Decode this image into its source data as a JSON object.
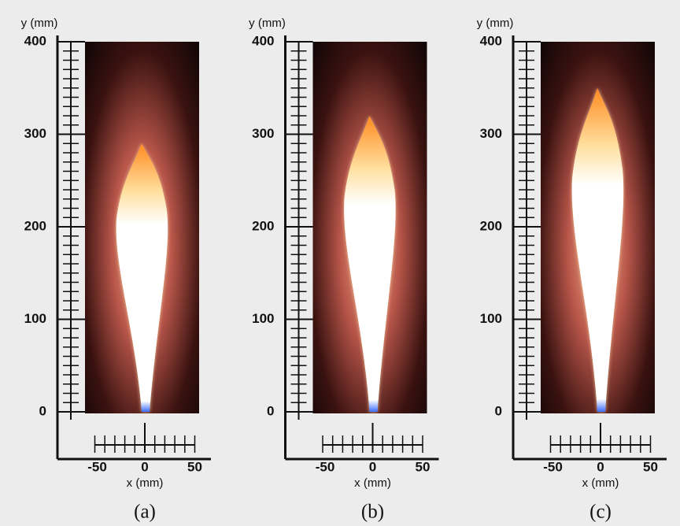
{
  "panels": [
    {
      "y_axis_label": "y (mm)",
      "y_ticks": [
        "400",
        "300",
        "200",
        "100",
        "0"
      ],
      "x_ticks": [
        "-50",
        "0",
        "50"
      ],
      "x_axis_label": "x (mm)",
      "caption": "(a)"
    },
    {
      "y_axis_label": "y (mm)",
      "y_ticks": [
        "400",
        "300",
        "200",
        "100",
        "0"
      ],
      "x_ticks": [
        "-50",
        "0",
        "50"
      ],
      "x_axis_label": "x (mm)",
      "caption": "(b)"
    },
    {
      "y_axis_label": "y (mm)",
      "y_ticks": [
        "400",
        "300",
        "200",
        "100",
        "0"
      ],
      "x_ticks": [
        "-50",
        "0",
        "50"
      ],
      "x_axis_label": "x (mm)",
      "caption": "(c)"
    }
  ]
}
